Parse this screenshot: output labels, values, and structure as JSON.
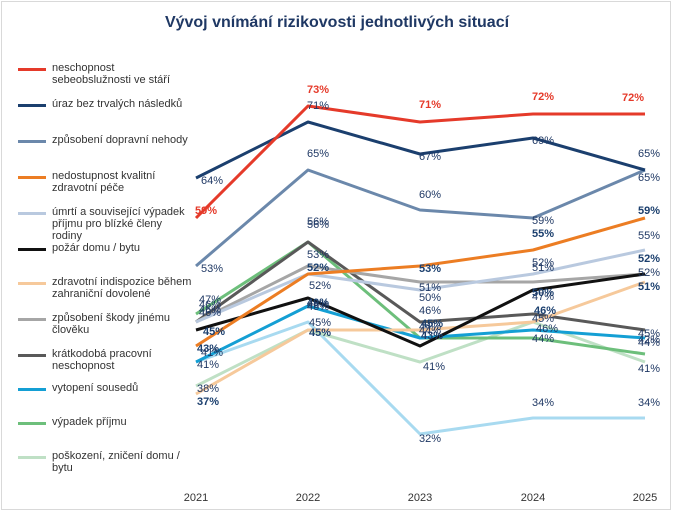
{
  "chart_data": {
    "type": "line",
    "title": "Vývoj vnímání rizikovosti jednotlivých situací",
    "categories": [
      "2021",
      "2022",
      "2023",
      "2024",
      "2025"
    ],
    "ylim": [
      25,
      80
    ],
    "xlabel": "",
    "ylabel": "",
    "legend_position": "left",
    "series": [
      {
        "name": "neschopnost sebeobslužnosti ve stáří",
        "color": "#e53a2a",
        "values": [
          59,
          73,
          71,
          72,
          72
        ],
        "labels": [
          "59%",
          "73%",
          "71%",
          "72%",
          "72%"
        ],
        "bold": true
      },
      {
        "name": "úraz bez trvalých následků",
        "color": "#1b3f6e",
        "values": [
          64,
          71,
          67,
          69,
          65
        ],
        "labels": [
          "64%",
          "71%",
          "67%",
          "69%",
          "65%"
        ],
        "bold": false
      },
      {
        "name": "způsobení dopravní nehody",
        "color": "#6b88ab",
        "values": [
          53,
          65,
          60,
          59,
          65
        ],
        "labels": [
          "53%",
          "65%",
          "60%",
          "59%",
          "65%"
        ],
        "bold": false
      },
      {
        "name": "nedostupnost kvalitní zdravotní péče",
        "color": "#ec7d23",
        "values": [
          43,
          52,
          53,
          55,
          59
        ],
        "labels": [
          "43%",
          "52%",
          "53%",
          "55%",
          "59%"
        ],
        "bold": true
      },
      {
        "name": "úmrtí a související výpadek příjmu pro blízké členy rodiny",
        "color": "#b9c9df",
        "values": [
          46,
          52,
          50,
          52,
          55
        ],
        "labels": [
          "46%",
          "52%",
          "50%",
          "52%",
          "55%"
        ],
        "bold": false
      },
      {
        "name": "požár domu / bytu",
        "color": "#111111",
        "values": [
          45,
          49,
          43,
          50,
          52
        ],
        "labels": [
          "45%",
          "49%",
          "43%",
          "50%",
          "52%"
        ],
        "bold": true
      },
      {
        "name": "zdravotní indispozice během zahraniční dovolené",
        "color": "#f6c99b",
        "values": [
          37,
          45,
          45,
          46,
          51
        ],
        "labels": [
          "37%",
          "45%",
          "45%",
          "46%",
          "51%"
        ],
        "bold": true
      },
      {
        "name": "způsobení škody jinému člověku",
        "color": "#a6a6a6",
        "values": [
          46,
          53,
          51,
          51,
          52
        ],
        "labels": [
          "46%",
          "53%",
          "51%",
          "51%",
          "52%"
        ],
        "bold": false
      },
      {
        "name": "krátkodobá pracovní neschopnost",
        "color": "#595959",
        "values": [
          46,
          56,
          46,
          47,
          45
        ],
        "labels": [
          "46%",
          "56%",
          "46%",
          "47%",
          "45%"
        ],
        "bold": false
      },
      {
        "name": "vytopení sousedů",
        "color": "#149fd4",
        "values": [
          41,
          48,
          44,
          45,
          44
        ],
        "labels": [
          "41%",
          "48%",
          "44%",
          "45%",
          "44%"
        ],
        "bold": false
      },
      {
        "name": "výpadek příjmu",
        "color": "#6dbf7b",
        "values": [
          47,
          56,
          44,
          44,
          42
        ],
        "labels": [
          "47%",
          "56%",
          "44%",
          "44%",
          "42%"
        ],
        "bold": false
      },
      {
        "name": "poškození, zničení domu / bytu",
        "color": "#bfe0c5",
        "values": [
          38,
          45,
          41,
          46,
          41
        ],
        "labels": [
          "38%",
          "45%",
          "41%",
          "46%",
          "41%"
        ],
        "bold": false
      },
      {
        "name": "",
        "color": "#a8daf0",
        "values": [
          41,
          46,
          32,
          34,
          34
        ],
        "labels": [
          "41%",
          "46%",
          "32%",
          "34%",
          "34%"
        ],
        "bold": false
      }
    ]
  }
}
